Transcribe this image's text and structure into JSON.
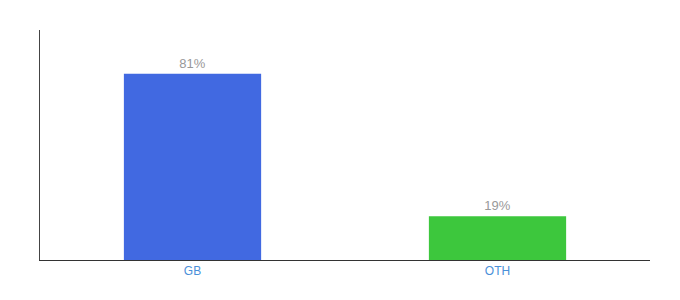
{
  "chart_data": {
    "type": "bar",
    "categories": [
      "GB",
      "OTH"
    ],
    "values": [
      81,
      19
    ],
    "value_labels": [
      "81%",
      "19%"
    ],
    "data_labels": true,
    "colors": [
      "#4169E1",
      "#3DC73D"
    ],
    "ylim": [
      0,
      100
    ],
    "grid": false,
    "tick_labels": "x"
  }
}
